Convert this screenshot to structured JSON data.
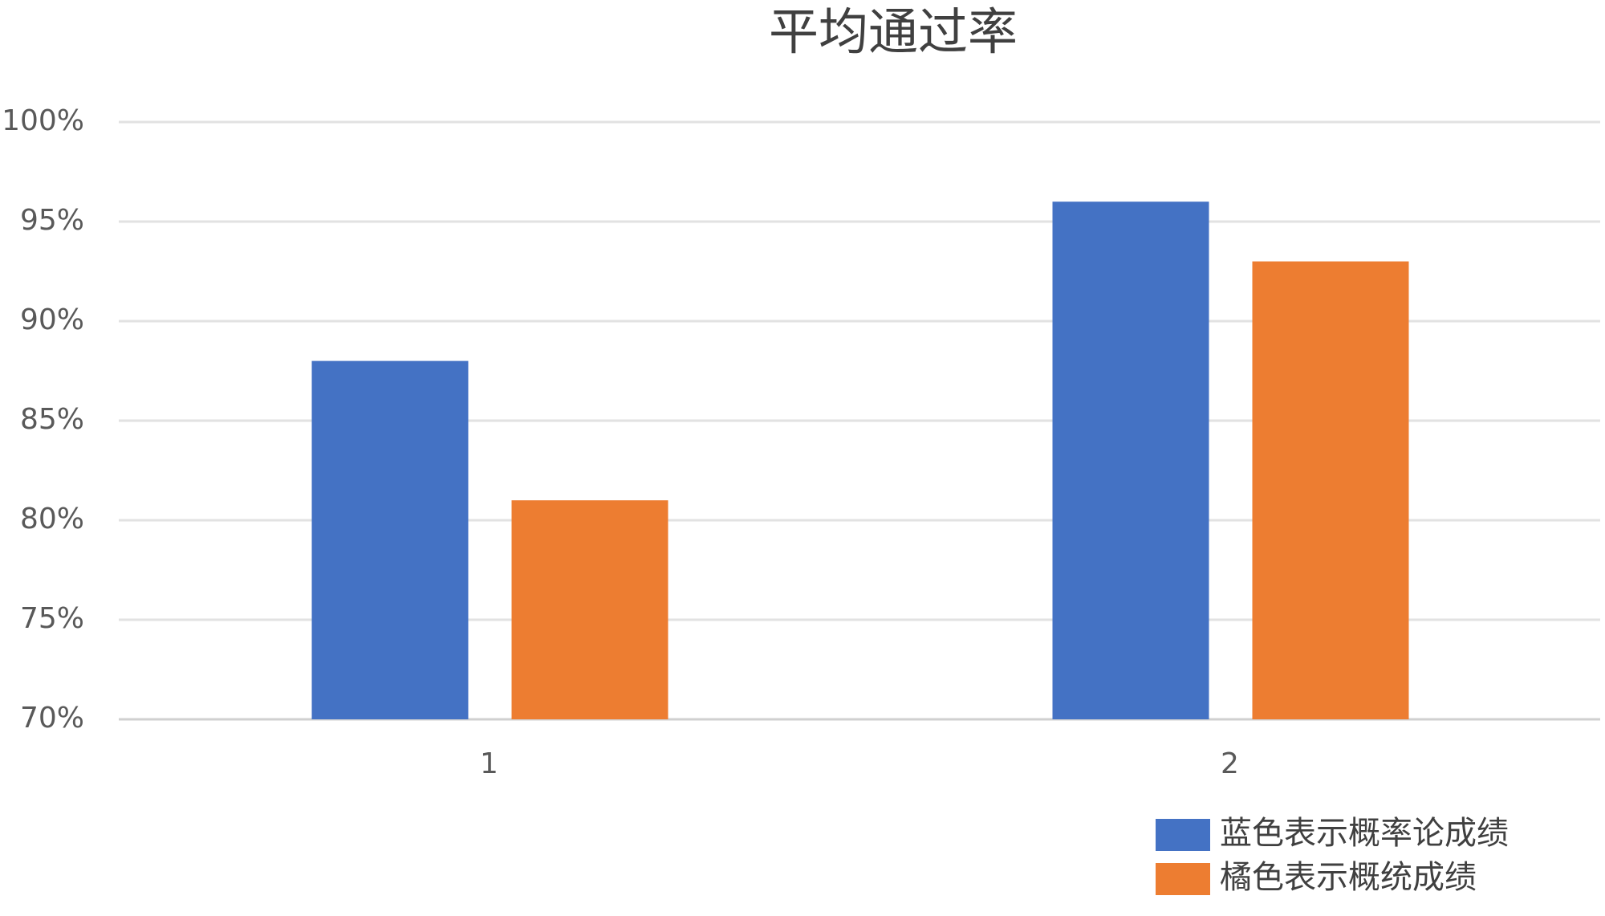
{
  "chart_data": {
    "type": "bar",
    "title": "平均通过率",
    "categories": [
      "1",
      "2"
    ],
    "series": [
      {
        "name": "蓝色表示概率论成绩",
        "color": "#4472c4",
        "values": [
          88,
          96
        ]
      },
      {
        "name": "橘色表示概统成绩",
        "color": "#ed7d31",
        "values": [
          81,
          93
        ]
      }
    ],
    "ylim": [
      70,
      100
    ],
    "yticks": [
      {
        "value": 70,
        "label": "70%"
      },
      {
        "value": 75,
        "label": "75%"
      },
      {
        "value": 80,
        "label": "80%"
      },
      {
        "value": 85,
        "label": "85%"
      },
      {
        "value": 90,
        "label": "90%"
      },
      {
        "value": 95,
        "label": "95%"
      },
      {
        "value": 100,
        "label": "100%"
      }
    ],
    "grid": true,
    "legend": "bottom-right"
  }
}
